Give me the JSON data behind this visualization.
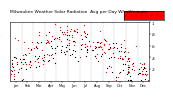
{
  "title": "Milwaukee Weather Solar Radiation  Avg per Day W/m2/minute",
  "title_fontsize": 3.2,
  "background_color": "#ffffff",
  "plot_bg_color": "#ffffff",
  "x_months": [
    "J",
    "F",
    "M",
    "A",
    "M",
    "J",
    "J",
    "A",
    "S",
    "O",
    "N",
    "D"
  ],
  "x_month_labels": [
    "Jan",
    "Feb",
    "Mar",
    "Apr",
    "May",
    "Jun",
    "Jul",
    "Aug",
    "Sep",
    "Oct",
    "Nov",
    "Dec"
  ],
  "ylim": [
    0,
    1.0
  ],
  "yticks": [
    0.2,
    0.4,
    0.6,
    0.8,
    1.0
  ],
  "ytick_labels": [
    ".2",
    ".4",
    ".6",
    ".8",
    "1"
  ],
  "ytick_fontsize": 2.8,
  "xtick_fontsize": 2.5,
  "dot_size": 0.8,
  "color_series1": "#000000",
  "color_series2": "#ff0000",
  "legend_color": "#ff0000",
  "legend_label": "...........",
  "grid_color": "#999999",
  "scatter_seed": 42,
  "n_points_per_month": 25,
  "monthly_means": [
    0.28,
    0.38,
    0.5,
    0.6,
    0.68,
    0.72,
    0.7,
    0.62,
    0.5,
    0.38,
    0.27,
    0.22
  ],
  "monthly_std": [
    0.16,
    0.18,
    0.2,
    0.2,
    0.18,
    0.16,
    0.16,
    0.16,
    0.18,
    0.18,
    0.14,
    0.12
  ]
}
